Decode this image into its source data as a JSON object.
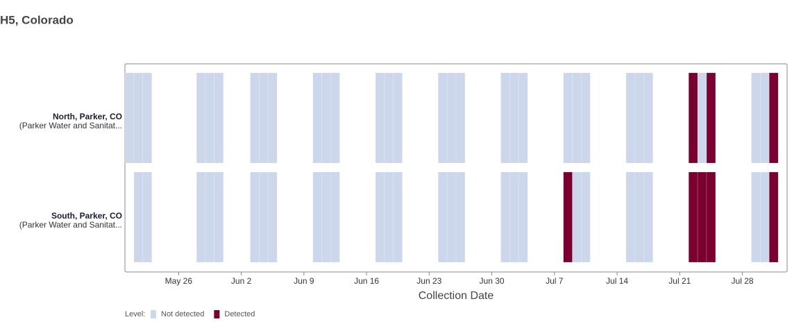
{
  "chart_data": {
    "type": "timeline",
    "title": "H5, Colorado",
    "x_label": "Collection Date",
    "legend_title": "Level:",
    "levels": [
      {
        "name": "Not detected",
        "color": "#cdd7eb"
      },
      {
        "name": "Detected",
        "color": "#7a0030"
      }
    ],
    "xlim": [
      "May 20",
      "Aug 2"
    ],
    "xticks": [
      "May 26",
      "Jun 2",
      "Jun 9",
      "Jun 16",
      "Jun 23",
      "Jun 30",
      "Jul 7",
      "Jul 14",
      "Jul 21",
      "Jul 28"
    ],
    "rows": [
      {
        "label": "North, Parker, CO",
        "sublabel": "(Parker Water and Sanitat...",
        "x": [
          "May 20",
          "May 21",
          "May 22",
          "May 28",
          "May 29",
          "May 30",
          "Jun 3",
          "Jun 4",
          "Jun 5",
          "Jun 10",
          "Jun 11",
          "Jun 12",
          "Jun 17",
          "Jun 18",
          "Jun 19",
          "Jun 24",
          "Jun 25",
          "Jun 26",
          "Jul 1",
          "Jul 2",
          "Jul 3",
          "Jul 8",
          "Jul 9",
          "Jul 10",
          "Jul 15",
          "Jul 16",
          "Jul 17",
          "Jul 22",
          "Jul 23",
          "Jul 24",
          "Jul 29",
          "Jul 30",
          "Jul 31"
        ],
        "values": [
          0,
          0,
          0,
          0,
          0,
          0,
          0,
          0,
          0,
          0,
          0,
          0,
          0,
          0,
          0,
          0,
          0,
          0,
          0,
          0,
          0,
          0,
          0,
          0,
          0,
          0,
          0,
          1,
          0,
          1,
          0,
          0,
          1
        ]
      },
      {
        "label": "South, Parker, CO",
        "sublabel": "(Parker Water and Sanitat...",
        "x": [
          "May 21",
          "May 22",
          "May 28",
          "May 29",
          "May 30",
          "Jun 3",
          "Jun 4",
          "Jun 5",
          "Jun 10",
          "Jun 11",
          "Jun 12",
          "Jun 17",
          "Jun 18",
          "Jun 19",
          "Jun 24",
          "Jun 25",
          "Jun 26",
          "Jul 1",
          "Jul 2",
          "Jul 3",
          "Jul 8",
          "Jul 9",
          "Jul 10",
          "Jul 15",
          "Jul 16",
          "Jul 17",
          "Jul 22",
          "Jul 23",
          "Jul 24",
          "Jul 29",
          "Jul 30",
          "Jul 31"
        ],
        "values": [
          0,
          0,
          0,
          0,
          0,
          0,
          0,
          0,
          0,
          0,
          0,
          0,
          0,
          0,
          0,
          0,
          0,
          0,
          0,
          0,
          1,
          0,
          0,
          0,
          0,
          0,
          1,
          1,
          1,
          0,
          0,
          1
        ]
      }
    ]
  }
}
